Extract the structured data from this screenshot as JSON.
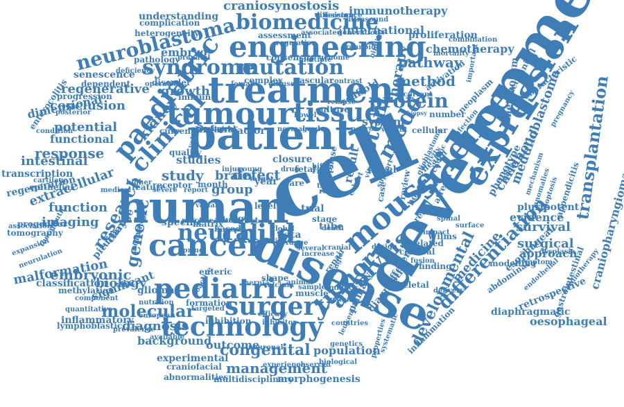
{
  "colors": {
    "word": "#3f7db6",
    "background": "#ffffff"
  },
  "words": [
    {
      "t": "patient"
    },
    {
      "t": "cell"
    },
    {
      "t": "development"
    },
    {
      "t": "disease"
    },
    {
      "t": "human"
    },
    {
      "t": "treatment"
    },
    {
      "t": "tumour"
    },
    {
      "t": "cancer"
    },
    {
      "t": "pediatric"
    },
    {
      "t": "tissue"
    },
    {
      "t": "expression"
    },
    {
      "t": "mouse"
    },
    {
      "t": "science"
    },
    {
      "t": "technology"
    },
    {
      "t": "surgery"
    },
    {
      "t": "engineering"
    },
    {
      "t": "biomedicine"
    },
    {
      "t": "syndrome"
    },
    {
      "t": "mutation"
    },
    {
      "t": "neuroblastoma"
    },
    {
      "t": "paediatric"
    },
    {
      "t": "clinical"
    },
    {
      "t": "child"
    },
    {
      "t": "neural"
    },
    {
      "t": "molecular"
    },
    {
      "t": "analysis"
    },
    {
      "t": "tumor"
    },
    {
      "t": "model"
    },
    {
      "t": "stem"
    },
    {
      "t": "protein"
    },
    {
      "t": "transplantation"
    },
    {
      "t": "craniopharyngioma"
    },
    {
      "t": "differentiation"
    },
    {
      "t": "developmental"
    },
    {
      "t": "congenital"
    },
    {
      "t": "management"
    },
    {
      "t": "diagnosis"
    },
    {
      "t": "embryonic"
    },
    {
      "t": "craniosynostosis"
    },
    {
      "t": "immunotherapy"
    },
    {
      "t": "medulloblastoma"
    },
    {
      "t": "childhood"
    },
    {
      "t": "chemotherapy"
    },
    {
      "t": "pathway"
    },
    {
      "t": "therapy"
    },
    {
      "t": "method"
    },
    {
      "t": "growth"
    },
    {
      "t": "system"
    },
    {
      "t": "kidney"
    },
    {
      "t": "study"
    },
    {
      "t": "brain"
    },
    {
      "t": "group"
    },
    {
      "t": "defect"
    },
    {
      "t": "research"
    },
    {
      "t": "genetic"
    },
    {
      "t": "response"
    },
    {
      "t": "potential"
    },
    {
      "t": "conclusion"
    },
    {
      "t": "regenerative"
    },
    {
      "t": "function"
    },
    {
      "t": "imaging"
    },
    {
      "t": "extracellular"
    },
    {
      "t": "intestinal"
    },
    {
      "t": "functional"
    },
    {
      "t": "dimensional"
    },
    {
      "t": "malformation"
    },
    {
      "t": "biology"
    },
    {
      "t": "classification"
    },
    {
      "t": "surgical"
    },
    {
      "t": "survival"
    },
    {
      "t": "evidence"
    },
    {
      "t": "approach"
    },
    {
      "t": "medicine"
    },
    {
      "t": "outcome"
    },
    {
      "t": "population"
    },
    {
      "t": "background"
    },
    {
      "t": "experimental"
    },
    {
      "t": "glioma"
    },
    {
      "t": "specific"
    },
    {
      "t": "studies"
    },
    {
      "t": "result"
    },
    {
      "t": "international"
    },
    {
      "t": "understanding"
    },
    {
      "t": "proliferation"
    },
    {
      "t": "embryo"
    },
    {
      "t": "phenotype"
    },
    {
      "t": "metabolism"
    },
    {
      "t": "pluripotent"
    },
    {
      "t": "novel"
    },
    {
      "t": "primary"
    },
    {
      "t": "inflammatory"
    },
    {
      "t": "significant"
    },
    {
      "t": "methylation"
    },
    {
      "t": "esophageal"
    },
    {
      "t": "oesophageal"
    },
    {
      "t": "diaphragmatic"
    },
    {
      "t": "retrospective"
    },
    {
      "t": "gastrointestinal"
    },
    {
      "t": "morphogenesis"
    },
    {
      "t": "multidisciplinary"
    },
    {
      "t": "abnormalities"
    },
    {
      "t": "craniofacial"
    },
    {
      "t": "lymphoblastic"
    },
    {
      "t": "transcription"
    },
    {
      "t": "regeneration"
    },
    {
      "t": "epithelial"
    },
    {
      "t": "tomography"
    },
    {
      "t": "progenitor"
    },
    {
      "t": "enterocolitis"
    },
    {
      "t": "senescence"
    },
    {
      "t": "heterogeneity"
    },
    {
      "t": "complication"
    },
    {
      "t": "assessment"
    },
    {
      "t": "consensus"
    },
    {
      "t": "pathology"
    },
    {
      "t": "dependent"
    },
    {
      "t": "progression"
    },
    {
      "t": "disorder"
    },
    {
      "t": "immune"
    },
    {
      "t": "complex"
    },
    {
      "t": "vascular"
    },
    {
      "t": "culture"
    },
    {
      "t": "scaffold"
    },
    {
      "t": "closure"
    },
    {
      "t": "infant"
    },
    {
      "t": "factor"
    },
    {
      "t": "current"
    },
    {
      "t": "quality"
    },
    {
      "t": "receptor"
    },
    {
      "t": "feature"
    },
    {
      "t": "month"
    },
    {
      "t": "adult"
    },
    {
      "t": "matrix"
    },
    {
      "t": "effect"
    },
    {
      "t": "based"
    },
    {
      "t": "data"
    },
    {
      "t": "tube"
    },
    {
      "t": "trial"
    },
    {
      "t": "level"
    },
    {
      "t": "type"
    },
    {
      "t": "stage"
    },
    {
      "t": "phase"
    },
    {
      "t": "renal"
    },
    {
      "t": "Wilms"
    },
    {
      "t": "related"
    },
    {
      "t": "bone"
    },
    {
      "t": "health"
    },
    {
      "t": "review"
    },
    {
      "t": "case"
    },
    {
      "t": "mechanical"
    },
    {
      "t": "cellular"
    },
    {
      "t": "number"
    },
    {
      "t": "biopsy"
    },
    {
      "t": "activation"
    },
    {
      "t": "important"
    },
    {
      "t": "neoplasm"
    },
    {
      "t": "characteristic"
    },
    {
      "t": "pituitary"
    },
    {
      "t": "change"
    },
    {
      "t": "common"
    },
    {
      "t": "diagnostic"
    },
    {
      "t": "different"
    },
    {
      "t": "skeletal"
    },
    {
      "t": "cortical"
    },
    {
      "t": "finding"
    },
    {
      "t": "shape"
    },
    {
      "t": "muscle"
    },
    {
      "t": "enteric"
    },
    {
      "t": "formation"
    },
    {
      "t": "inhibition"
    },
    {
      "t": "neuronal"
    },
    {
      "t": "experience"
    },
    {
      "t": "observed"
    },
    {
      "t": "biological"
    },
    {
      "t": "atresia"
    },
    {
      "t": "surface"
    },
    {
      "t": "spinal"
    },
    {
      "t": "impact"
    },
    {
      "t": "delivery"
    },
    {
      "t": "modelling"
    },
    {
      "t": "dysplasia"
    },
    {
      "t": "symptom"
    },
    {
      "t": "abdominal"
    },
    {
      "t": "endothelial"
    },
    {
      "t": "cardiotherapy"
    },
    {
      "t": "appendicitis"
    },
    {
      "t": "apoptosis"
    },
    {
      "t": "anomalies"
    },
    {
      "t": "mechanism"
    },
    {
      "t": "inflammation"
    },
    {
      "t": "systematic"
    },
    {
      "t": "properties"
    },
    {
      "t": "leukemia"
    },
    {
      "t": "nutrition"
    },
    {
      "t": "european"
    },
    {
      "t": "available"
    },
    {
      "t": "prevalence"
    },
    {
      "t": "quantitative"
    },
    {
      "t": "component"
    },
    {
      "t": "association"
    },
    {
      "t": "expansion"
    },
    {
      "t": "neurulation"
    },
    {
      "t": "therapeutic"
    },
    {
      "t": "condition"
    },
    {
      "t": "posterior"
    },
    {
      "t": "cartilage"
    },
    {
      "t": "medical"
    },
    {
      "t": "higher"
    },
    {
      "t": "severe"
    },
    {
      "t": "report"
    },
    {
      "t": "variant"
    },
    {
      "t": "injury"
    },
    {
      "t": "young"
    },
    {
      "t": "drug"
    },
    {
      "t": "fetal"
    },
    {
      "t": "risk"
    },
    {
      "t": "life"
    },
    {
      "t": "time"
    },
    {
      "t": "role"
    },
    {
      "t": "care"
    },
    {
      "t": "year"
    },
    {
      "t": "bifida"
    },
    {
      "t": "hernia"
    },
    {
      "t": "animal"
    },
    {
      "t": "sample"
    },
    {
      "t": "calcium"
    },
    {
      "t": "increase"
    },
    {
      "t": "single"
    },
    {
      "t": "repair"
    },
    {
      "t": "death"
    },
    {
      "t": "cranial"
    },
    {
      "t": "amniotic"
    },
    {
      "t": "instant"
    },
    {
      "t": "coactive"
    },
    {
      "t": "glioblastoma"
    },
    {
      "t": "difference"
    },
    {
      "t": "resistance"
    },
    {
      "t": "ultrasound"
    },
    {
      "t": "associated"
    },
    {
      "t": "generation"
    },
    {
      "t": "combination"
    },
    {
      "t": "mortality"
    },
    {
      "t": "regulation"
    },
    {
      "t": "multiple"
    },
    {
      "t": "genome"
    },
    {
      "t": "organoid"
    },
    {
      "t": "binding"
    },
    {
      "t": "prenatal"
    },
    {
      "t": "deficiency"
    },
    {
      "t": "operative"
    },
    {
      "t": "female"
    },
    {
      "t": "diffuse"
    },
    {
      "t": "contrast"
    },
    {
      "t": "relapse"
    },
    {
      "t": "bowel"
    },
    {
      "t": "normal"
    },
    {
      "t": "grade"
    },
    {
      "t": "neuron"
    },
    {
      "t": "weight"
    },
    {
      "t": "recurrent"
    },
    {
      "t": "cohort"
    },
    {
      "t": "chronic"
    },
    {
      "t": "activity"
    },
    {
      "t": "support"
    },
    {
      "t": "infection"
    },
    {
      "t": "pregnancy"
    },
    {
      "t": "media"
    },
    {
      "t": "fusion"
    },
    {
      "t": "global"
    },
    {
      "t": "mild"
    },
    {
      "t": "target"
    },
    {
      "t": "blood"
    },
    {
      "t": "spring"
    },
    {
      "t": "practice"
    },
    {
      "t": "volume"
    },
    {
      "t": "polarity"
    },
    {
      "t": "central"
    },
    {
      "t": "targeted"
    },
    {
      "t": "efficacy"
    },
    {
      "t": "inhibitor"
    },
    {
      "t": "countries"
    },
    {
      "t": "genetics"
    },
    {
      "t": "range"
    },
    {
      "t": "several"
    },
    {
      "t": "design"
    },
    {
      "t": "vitro"
    }
  ]
}
